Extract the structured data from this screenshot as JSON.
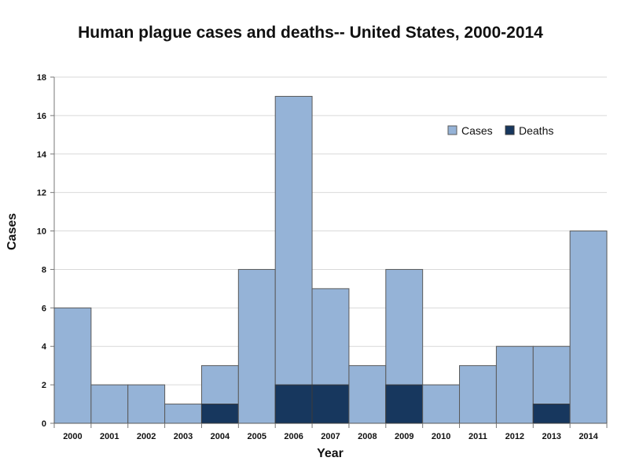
{
  "chart_data": {
    "type": "bar",
    "title": "Human plague cases and deaths-- United States, 2000-2014",
    "xlabel": "Year",
    "ylabel": "Cases",
    "ylim": [
      0,
      18
    ],
    "yticks": [
      0,
      2,
      4,
      6,
      8,
      10,
      12,
      14,
      16,
      18
    ],
    "grid": true,
    "legend_position": "top-right",
    "categories": [
      "2000",
      "2001",
      "2002",
      "2003",
      "2004",
      "2005",
      "2006",
      "2007",
      "2008",
      "2009",
      "2010",
      "2011",
      "2012",
      "2013",
      "2014"
    ],
    "series": [
      {
        "name": "Cases",
        "color": "#95b3d7",
        "values": [
          6,
          2,
          2,
          1,
          3,
          8,
          17,
          7,
          3,
          8,
          2,
          3,
          4,
          4,
          10
        ]
      },
      {
        "name": "Deaths",
        "color": "#17375e",
        "values": [
          0,
          0,
          0,
          0,
          1,
          0,
          2,
          2,
          0,
          2,
          0,
          0,
          0,
          1,
          0
        ]
      }
    ]
  }
}
